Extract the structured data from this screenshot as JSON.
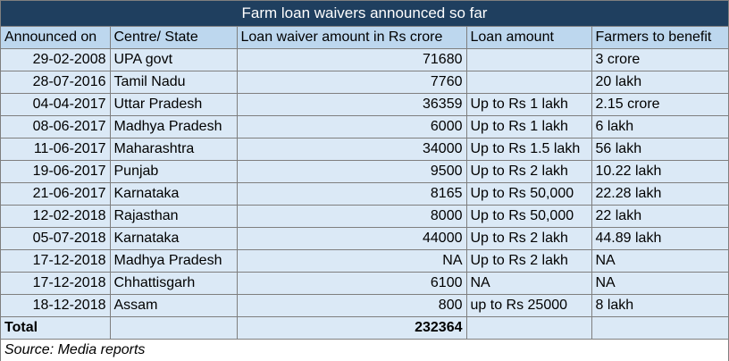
{
  "title": "Farm loan waivers announced so far",
  "headers": [
    "Announced on",
    "Centre/ State",
    "Loan waiver amount in Rs crore",
    "Loan amount",
    "Farmers to benefit"
  ],
  "rows": [
    [
      "29-02-2008",
      "UPA govt",
      "71680",
      "",
      "3 crore"
    ],
    [
      "28-07-2016",
      "Tamil Nadu",
      "7760",
      "",
      "20 lakh"
    ],
    [
      "04-04-2017",
      "Uttar Pradesh",
      "36359",
      "Up to Rs 1 lakh",
      "2.15 crore"
    ],
    [
      "08-06-2017",
      "Madhya Pradesh",
      "6000",
      "Up to Rs 1 lakh",
      "6 lakh"
    ],
    [
      "11-06-2017",
      "Maharashtra",
      "34000",
      "Up to Rs 1.5 lakh",
      "56 lakh"
    ],
    [
      "19-06-2017",
      "Punjab",
      "9500",
      "Up to Rs 2 lakh",
      "10.22 lakh"
    ],
    [
      "21-06-2017",
      "Karnataka",
      "8165",
      "Up to Rs 50,000",
      "22.28 lakh"
    ],
    [
      "12-02-2018",
      "Rajasthan",
      "8000",
      "Up to Rs 50,000",
      "22 lakh"
    ],
    [
      "05-07-2018",
      "Karnataka",
      "44000",
      "Up to Rs 2 lakh",
      "44.89 lakh"
    ],
    [
      "17-12-2018",
      "Madhya Pradesh",
      "NA",
      "Up to Rs 2 lakh",
      "NA"
    ],
    [
      "17-12-2018",
      "Chhattisgarh",
      "6100",
      "NA",
      "NA"
    ],
    [
      "18-12-2018",
      "Assam",
      "800",
      "up to Rs 25000",
      "8 lakh"
    ]
  ],
  "total": {
    "label": "Total",
    "amount": "232364"
  },
  "source": "Source: Media reports"
}
